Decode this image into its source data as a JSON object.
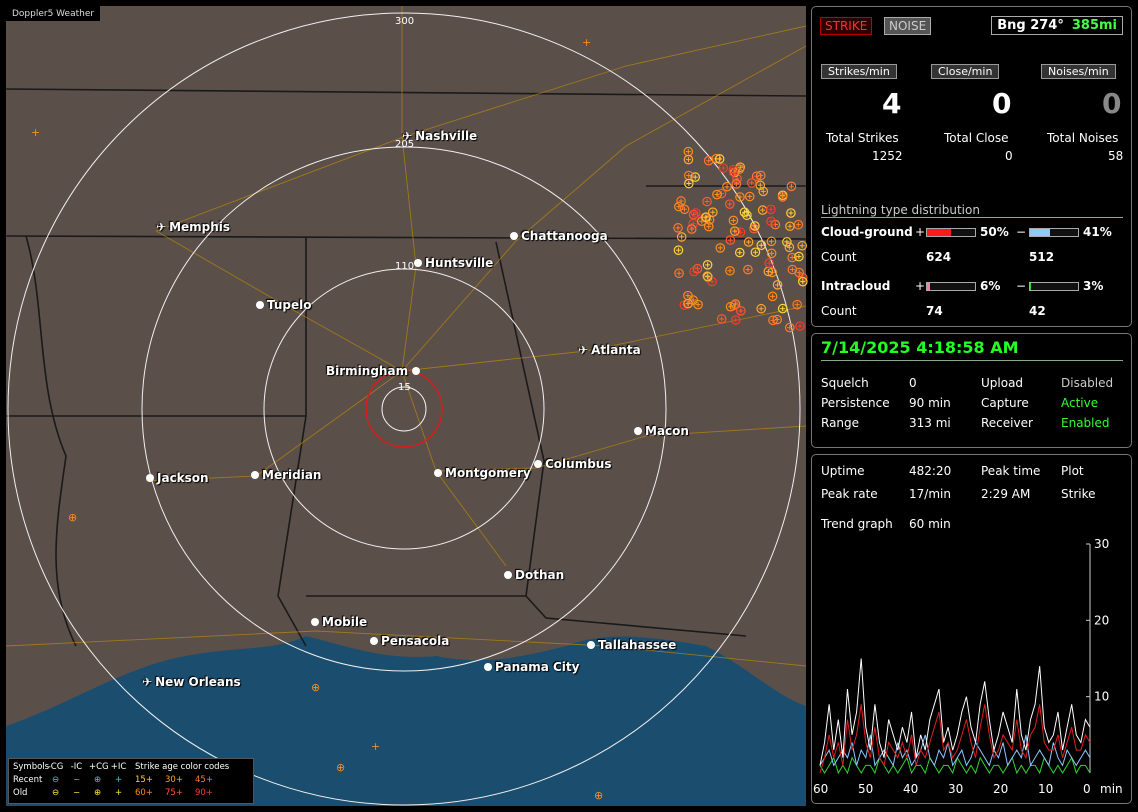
{
  "map": {
    "title": "Doppler5 Weather",
    "ring_labels": [
      "300",
      "205",
      "110",
      "15"
    ],
    "cities": [
      {
        "name": "Nashville",
        "icon": "airport-icon"
      },
      {
        "name": "Memphis",
        "icon": "airport-icon"
      },
      {
        "name": "Chattanooga",
        "icon": "dot"
      },
      {
        "name": "Huntsville",
        "icon": "dot"
      },
      {
        "name": "Tupelo",
        "icon": "dot"
      },
      {
        "name": "Atlanta",
        "icon": "airport-icon"
      },
      {
        "name": "Birmingham",
        "icon": "dot"
      },
      {
        "name": "Macon",
        "icon": "dot"
      },
      {
        "name": "Jackson",
        "icon": "dot"
      },
      {
        "name": "Meridian",
        "icon": "dot"
      },
      {
        "name": "Montgomery",
        "icon": "dot"
      },
      {
        "name": "Columbus",
        "icon": "dot"
      },
      {
        "name": "Dothan",
        "icon": "dot"
      },
      {
        "name": "Mobile",
        "icon": "dot"
      },
      {
        "name": "Pensacola",
        "icon": "dot"
      },
      {
        "name": "Tallahassee",
        "icon": "dot"
      },
      {
        "name": "Panama City",
        "icon": "dot"
      },
      {
        "name": "New Orleans",
        "icon": "airport-icon"
      }
    ],
    "legend": {
      "symbols_label": "Symbols",
      "headers": [
        "-CG",
        "-IC",
        "+CG",
        "+IC"
      ],
      "age_title": "Strike age color codes",
      "recent_label": "Recent",
      "old_label": "Old",
      "recent_ages": [
        "15+",
        "30+",
        "45+"
      ],
      "old_ages": [
        "60+",
        "75+",
        "90+"
      ],
      "age_colors": [
        "#ffd23a",
        "#ffa830",
        "#ff7a2a",
        "#ff8c1a",
        "#ff5a2a",
        "#ff3a2a"
      ]
    }
  },
  "panel1": {
    "strike_btn": "STRIKE",
    "noise_btn": "NOISE",
    "bearing": "Bng 274°",
    "distance": "385mi",
    "strikes_min_label": "Strikes/min",
    "close_min_label": "Close/min",
    "noises_min_label": "Noises/min",
    "strikes_min": "4",
    "close_min": "0",
    "noises_min": "0",
    "total_strikes_label": "Total Strikes",
    "total_close_label": "Total Close",
    "total_noises_label": "Total Noises",
    "total_strikes": "1252",
    "total_close": "0",
    "total_noises": "58",
    "dist_title": "Lightning type distribution",
    "cg_label": "Cloud-ground",
    "ic_label": "Intracloud",
    "count_label": "Count",
    "plus": "+",
    "minus": "−",
    "cg_pos_pct": "50%",
    "cg_neg_pct": "41%",
    "cg_pos_count": "624",
    "cg_neg_count": "512",
    "ic_pos_pct": "6%",
    "ic_neg_pct": "3%",
    "ic_pos_count": "74",
    "ic_neg_count": "42",
    "bars": {
      "cg_pos": 0.5,
      "cg_neg": 0.41,
      "ic_pos": 0.06,
      "ic_neg": 0.03
    },
    "bar_colors": {
      "cg_pos": "#ff1a1a",
      "cg_neg": "#8ec8ff",
      "ic_pos": "#ff7ab0",
      "ic_neg": "#2fd62f"
    }
  },
  "panel2": {
    "datetime": "7/14/2025 4:18:58 AM",
    "squelch_label": "Squelch",
    "squelch": "0",
    "persistence_label": "Persistence",
    "persistence": "90 min",
    "range_label": "Range",
    "range": "313 mi",
    "upload_label": "Upload",
    "upload": "Disabled",
    "capture_label": "Capture",
    "capture": "Active",
    "receiver_label": "Receiver",
    "receiver": "Enabled"
  },
  "panel3": {
    "uptime_label": "Uptime",
    "uptime": "482:20",
    "peak_time_label": "Peak time",
    "peak_time": "2:29 AM",
    "plot_label": "Plot",
    "plot": "Strike",
    "peak_rate_label": "Peak rate",
    "peak_rate": "17/min",
    "trend_label": "Trend graph",
    "trend_window": "60 min"
  },
  "chart_data": {
    "type": "line",
    "xlabel": "min",
    "ylim": [
      0,
      30
    ],
    "xlim": [
      60,
      0
    ],
    "x_ticks": [
      "60",
      "50",
      "40",
      "30",
      "20",
      "10",
      "0"
    ],
    "y_ticks": [
      "30",
      "20",
      "10"
    ],
    "series": [
      {
        "color": "#ffffff",
        "values": [
          1,
          4,
          9,
          3,
          7,
          2,
          11,
          5,
          8,
          15,
          6,
          3,
          9,
          4,
          2,
          7,
          5,
          3,
          6,
          4,
          8,
          2,
          5,
          3,
          7,
          9,
          11,
          4,
          6,
          3,
          5,
          8,
          10,
          6,
          4,
          9,
          12,
          7,
          3,
          5,
          8,
          6,
          4,
          11,
          5,
          3,
          7,
          9,
          14,
          6,
          4,
          5,
          8,
          3,
          6,
          9,
          5,
          4,
          7,
          6
        ]
      },
      {
        "color": "#e02020",
        "values": [
          0,
          2,
          5,
          2,
          4,
          1,
          7,
          3,
          5,
          9,
          4,
          2,
          6,
          2,
          1,
          4,
          3,
          2,
          4,
          2,
          5,
          1,
          3,
          2,
          4,
          6,
          8,
          3,
          4,
          2,
          3,
          5,
          7,
          4,
          2,
          6,
          9,
          5,
          2,
          3,
          5,
          4,
          3,
          7,
          3,
          2,
          5,
          6,
          9,
          4,
          3,
          3,
          5,
          2,
          4,
          6,
          3,
          3,
          5,
          4
        ]
      },
      {
        "color": "#8ec8ff",
        "values": [
          1,
          2,
          3,
          1,
          2,
          3,
          2,
          4,
          1,
          3,
          2,
          5,
          1,
          2,
          3,
          2,
          1,
          4,
          2,
          3,
          1,
          2,
          3,
          5,
          2,
          1,
          3,
          2,
          4,
          1,
          2,
          3,
          1,
          2,
          4,
          3,
          2,
          1,
          3,
          2,
          4,
          1,
          2,
          3,
          2,
          5,
          1,
          2,
          3,
          2,
          1,
          4,
          2,
          1,
          3,
          2,
          1,
          2,
          3,
          2
        ]
      },
      {
        "color": "#2fd62f",
        "values": [
          1,
          0,
          1,
          2,
          0,
          1,
          0,
          2,
          1,
          0,
          1,
          1,
          0,
          2,
          1,
          0,
          1,
          0,
          1,
          2,
          0,
          1,
          1,
          0,
          2,
          1,
          0,
          1,
          1,
          0,
          2,
          1,
          0,
          1,
          0,
          2,
          1,
          0,
          1,
          1,
          0,
          1,
          2,
          0,
          1,
          0,
          1,
          1,
          0,
          2,
          1,
          0,
          1,
          0,
          1,
          2,
          0,
          1,
          1,
          0
        ]
      }
    ]
  }
}
